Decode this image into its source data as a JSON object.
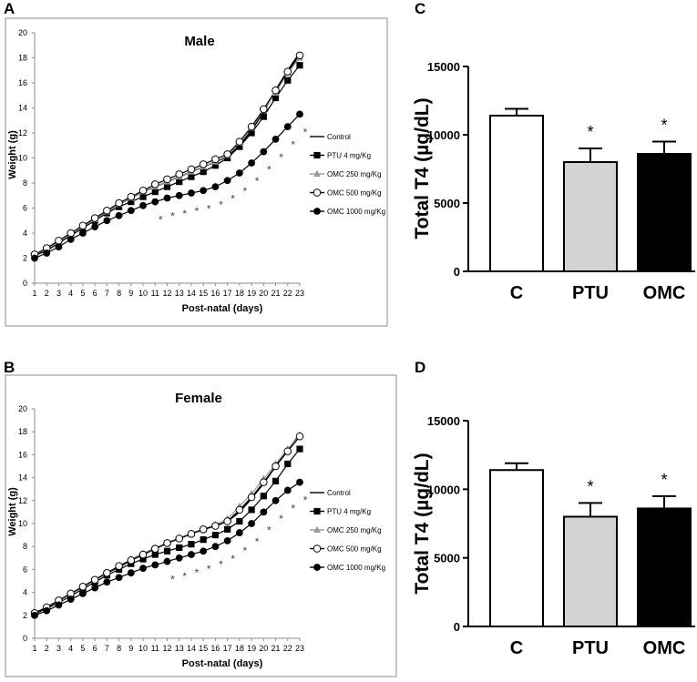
{
  "panels": {
    "a": "A",
    "b": "B",
    "c": "C",
    "d": "D"
  },
  "legend": {
    "title_marker": "—",
    "items": [
      "Control",
      "PTU 4 mg/Kg",
      "OMC 250 mg/Kg",
      "OMC 500 mg/Kg",
      "OMC 1000 mg/Kg"
    ]
  },
  "colors": {
    "Control": "#000000",
    "PTU 4 mg/Kg": "#000000",
    "OMC 250 mg/Kg": "#9a9a9a",
    "OMC 500 mg/Kg": "#000000",
    "OMC 1000 mg/Kg": "#000000",
    "bar_C": "#ffffff",
    "bar_PTU": "#d3d3d3",
    "bar_OMC": "#000000"
  },
  "chart_data": [
    {
      "type": "line",
      "panel": "A",
      "title": "Male",
      "xlabel": "Post-natal (days)",
      "ylabel": "Weight (g)",
      "x": [
        1,
        2,
        3,
        4,
        5,
        6,
        7,
        8,
        9,
        10,
        11,
        12,
        13,
        14,
        15,
        16,
        17,
        18,
        19,
        20,
        21,
        22,
        23
      ],
      "xlim": [
        1,
        23
      ],
      "ylim": [
        0,
        20
      ],
      "yticks": [
        0,
        2,
        4,
        6,
        8,
        10,
        12,
        14,
        16,
        18,
        20
      ],
      "legend_position": "center-right",
      "series": [
        {
          "name": "Control",
          "marker": "none",
          "values": [
            2.3,
            2.7,
            3.3,
            3.9,
            4.5,
            5.1,
            5.7,
            6.3,
            6.8,
            7.3,
            7.7,
            8.1,
            8.5,
            8.9,
            9.3,
            9.7,
            10.1,
            11.0,
            12.2,
            13.7,
            15.4,
            17.0,
            18.4
          ]
        },
        {
          "name": "PTU 4 mg/Kg",
          "marker": "square",
          "values": [
            2.2,
            2.6,
            3.2,
            3.8,
            4.4,
            5.0,
            5.6,
            6.1,
            6.5,
            6.9,
            7.3,
            7.7,
            8.1,
            8.5,
            8.9,
            9.4,
            10.0,
            10.9,
            12.0,
            13.3,
            14.8,
            16.2,
            17.4
          ]
        },
        {
          "name": "OMC 250 mg/Kg",
          "marker": "triangle",
          "values": [
            2.3,
            2.7,
            3.3,
            3.9,
            4.5,
            5.1,
            5.7,
            6.3,
            6.8,
            7.3,
            7.7,
            8.1,
            8.5,
            8.9,
            9.3,
            9.7,
            10.2,
            11.2,
            12.4,
            13.8,
            15.2,
            16.8,
            18.0
          ]
        },
        {
          "name": "OMC 500 mg/Kg",
          "marker": "circle",
          "values": [
            2.3,
            2.8,
            3.4,
            4.0,
            4.6,
            5.2,
            5.8,
            6.4,
            6.9,
            7.4,
            7.9,
            8.3,
            8.7,
            9.1,
            9.5,
            9.9,
            10.3,
            11.3,
            12.5,
            13.9,
            15.4,
            16.9,
            18.2
          ]
        },
        {
          "name": "OMC 1000 mg/Kg",
          "marker": "diamond",
          "values": [
            2.0,
            2.4,
            2.9,
            3.5,
            4.0,
            4.5,
            5.0,
            5.4,
            5.8,
            6.2,
            6.5,
            6.8,
            7.0,
            7.2,
            7.4,
            7.7,
            8.2,
            8.8,
            9.6,
            10.5,
            11.5,
            12.5,
            13.5
          ]
        }
      ],
      "significance_days": [
        11,
        12,
        13,
        14,
        15,
        16,
        17,
        18,
        19,
        20,
        21,
        22,
        23
      ]
    },
    {
      "type": "line",
      "panel": "B",
      "title": "Female",
      "xlabel": "Post-natal (days)",
      "ylabel": "Weight (g)",
      "x": [
        1,
        2,
        3,
        4,
        5,
        6,
        7,
        8,
        9,
        10,
        11,
        12,
        13,
        14,
        15,
        16,
        17,
        18,
        19,
        20,
        21,
        22,
        23
      ],
      "xlim": [
        1,
        23
      ],
      "ylim": [
        0,
        20
      ],
      "yticks": [
        0,
        2,
        4,
        6,
        8,
        10,
        12,
        14,
        16,
        18,
        20
      ],
      "legend_position": "center-right",
      "series": [
        {
          "name": "Control",
          "marker": "none",
          "values": [
            2.2,
            2.7,
            3.3,
            3.9,
            4.5,
            5.1,
            5.7,
            6.2,
            6.8,
            7.3,
            7.8,
            8.3,
            8.7,
            9.1,
            9.5,
            9.8,
            10.2,
            11.0,
            12.2,
            13.5,
            15.0,
            16.4,
            17.8
          ]
        },
        {
          "name": "PTU 4 mg/Kg",
          "marker": "square",
          "values": [
            2.1,
            2.6,
            3.1,
            3.7,
            4.3,
            4.9,
            5.5,
            6.0,
            6.5,
            6.9,
            7.3,
            7.6,
            7.9,
            8.2,
            8.6,
            9.0,
            9.5,
            10.2,
            11.2,
            12.4,
            13.7,
            15.2,
            16.5
          ]
        },
        {
          "name": "OMC 250 mg/Kg",
          "marker": "triangle",
          "values": [
            2.2,
            2.7,
            3.3,
            3.9,
            4.5,
            5.1,
            5.7,
            6.3,
            6.9,
            7.4,
            7.9,
            8.3,
            8.7,
            9.1,
            9.5,
            9.9,
            10.4,
            11.5,
            12.6,
            13.9,
            15.2,
            16.5,
            17.7
          ]
        },
        {
          "name": "OMC 500 mg/Kg",
          "marker": "circle",
          "values": [
            2.2,
            2.7,
            3.3,
            3.9,
            4.5,
            5.1,
            5.7,
            6.3,
            6.8,
            7.3,
            7.8,
            8.3,
            8.7,
            9.1,
            9.5,
            9.8,
            10.2,
            11.2,
            12.3,
            13.6,
            15.0,
            16.3,
            17.6
          ]
        },
        {
          "name": "OMC 1000 mg/Kg",
          "marker": "diamond",
          "values": [
            2.0,
            2.4,
            2.9,
            3.4,
            3.9,
            4.4,
            4.9,
            5.3,
            5.7,
            6.1,
            6.4,
            6.7,
            7.0,
            7.3,
            7.6,
            8.0,
            8.5,
            9.2,
            10.0,
            11.0,
            12.0,
            12.9,
            13.6
          ]
        }
      ],
      "significance_days": [
        12,
        13,
        14,
        15,
        16,
        17,
        18,
        19,
        20,
        21,
        22,
        23
      ]
    },
    {
      "type": "bar",
      "panel": "C",
      "title": "",
      "xlabel": "",
      "ylabel": "Total T4 (µg/dL)",
      "categories": [
        "C",
        "PTU",
        "OMC"
      ],
      "values": [
        11400,
        8000,
        8600
      ],
      "errors": [
        500,
        1000,
        900
      ],
      "significant": [
        false,
        true,
        true
      ],
      "ylim": [
        0,
        15000
      ],
      "yticks": [
        0,
        5000,
        10000,
        15000
      ]
    },
    {
      "type": "bar",
      "panel": "D",
      "title": "",
      "xlabel": "",
      "ylabel": "Total T4 (µg/dL)",
      "categories": [
        "C",
        "PTU",
        "OMC"
      ],
      "values": [
        11400,
        8000,
        8600
      ],
      "errors": [
        500,
        1000,
        900
      ],
      "significant": [
        false,
        true,
        true
      ],
      "ylim": [
        0,
        15000
      ],
      "yticks": [
        0,
        5000,
        10000,
        15000
      ]
    }
  ]
}
